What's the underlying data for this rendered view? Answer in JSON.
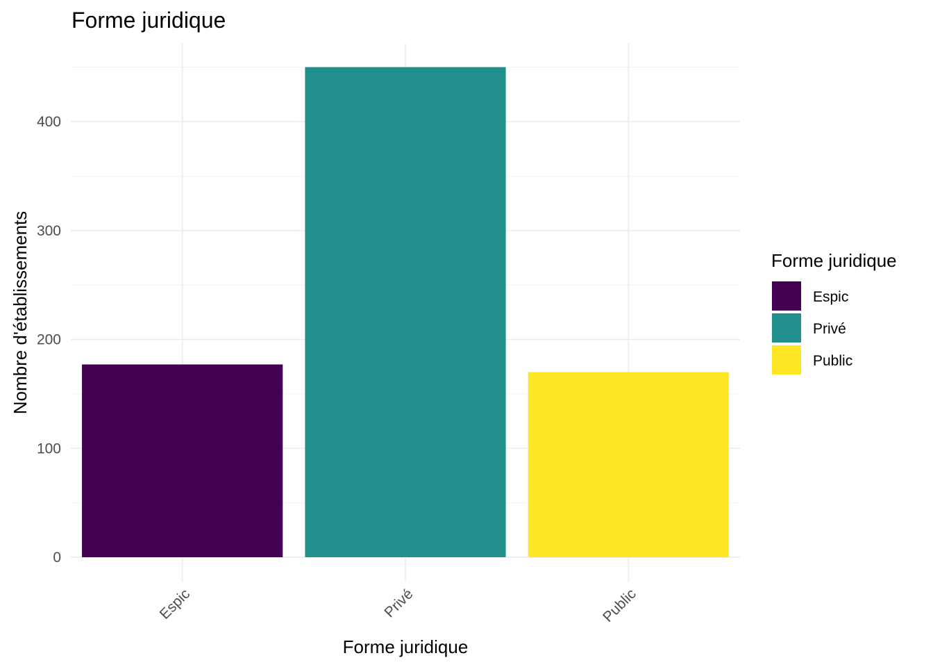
{
  "chart_data": {
    "type": "bar",
    "title": "Forme juridique",
    "xlabel": "Forme juridique",
    "ylabel": "Nombre d'établissements",
    "categories": [
      "Espic",
      "Privé",
      "Public"
    ],
    "values": [
      177,
      450,
      170
    ],
    "colors": [
      "#440154",
      "#21908C",
      "#FDE725"
    ],
    "ylim": [
      0,
      470
    ],
    "yticks": [
      0,
      100,
      200,
      300,
      400
    ],
    "grid": true,
    "legend": {
      "title": "Forme juridique",
      "position": "right",
      "entries": [
        "Espic",
        "Privé",
        "Public"
      ]
    }
  }
}
